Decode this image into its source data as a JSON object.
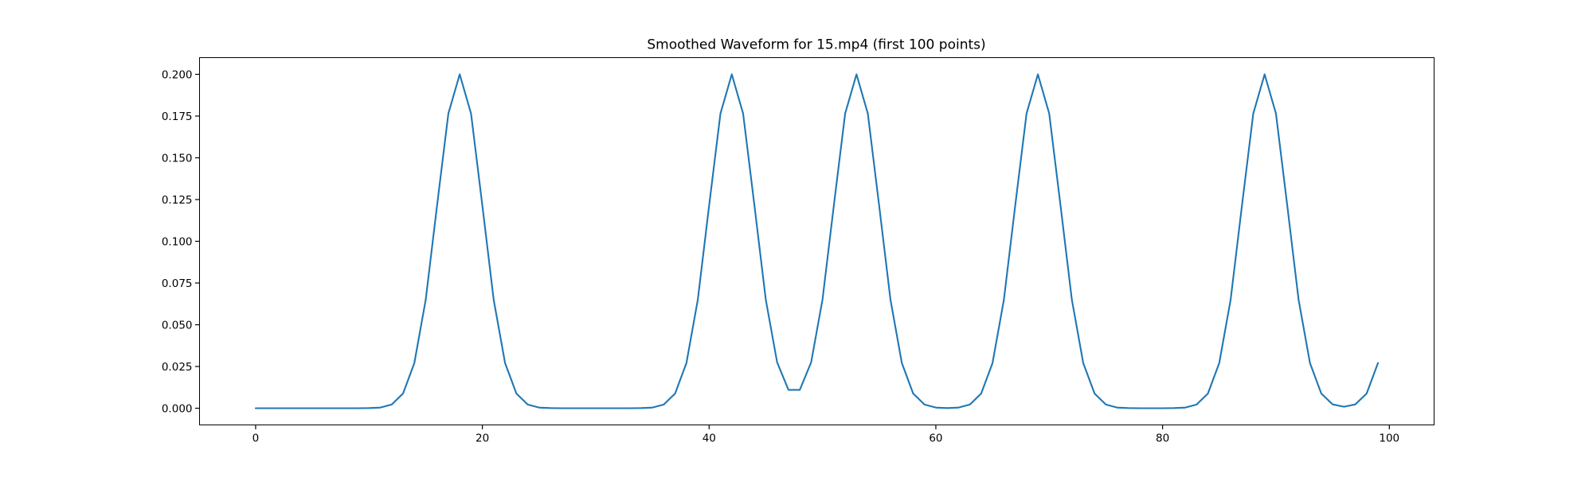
{
  "figure": {
    "background": "#ffffff"
  },
  "chart_data": {
    "type": "line",
    "title": "Smoothed Waveform for 15.mp4 (first 100 points)",
    "xlabel": "",
    "ylabel": "",
    "legend": "none",
    "grid": false,
    "line_color": "#1f77b4",
    "axis_color": "#000000",
    "xlim": [
      -4.95,
      103.95
    ],
    "ylim": [
      -0.01,
      0.21
    ],
    "x_ticks": {
      "values": [
        0,
        20,
        40,
        60,
        80,
        100
      ],
      "labels": [
        "0",
        "20",
        "40",
        "60",
        "80",
        "100"
      ]
    },
    "y_ticks": {
      "values": [
        0.0,
        0.025,
        0.05,
        0.075,
        0.1,
        0.125,
        0.15,
        0.175,
        0.2
      ],
      "labels": [
        "0.000",
        "0.025",
        "0.050",
        "0.075",
        "0.100",
        "0.125",
        "0.150",
        "0.175",
        "0.200"
      ]
    },
    "x": [
      0,
      1,
      2,
      3,
      4,
      5,
      6,
      7,
      8,
      9,
      10,
      11,
      12,
      13,
      14,
      15,
      16,
      17,
      18,
      19,
      20,
      21,
      22,
      23,
      24,
      25,
      26,
      27,
      28,
      29,
      30,
      31,
      32,
      33,
      34,
      35,
      36,
      37,
      38,
      39,
      40,
      41,
      42,
      43,
      44,
      45,
      46,
      47,
      48,
      49,
      50,
      51,
      52,
      53,
      54,
      55,
      56,
      57,
      58,
      59,
      60,
      61,
      62,
      63,
      64,
      65,
      66,
      67,
      68,
      69,
      70,
      71,
      72,
      73,
      74,
      75,
      76,
      77,
      78,
      79,
      80,
      81,
      82,
      83,
      84,
      85,
      86,
      87,
      88,
      89,
      90,
      91,
      92,
      93,
      94,
      95,
      96,
      97,
      98,
      99
    ],
    "values": [
      0,
      0,
      0,
      0,
      0,
      0,
      0,
      0,
      0,
      0,
      0.0001,
      0.0004,
      0.0022,
      0.0088,
      0.0271,
      0.0649,
      0.1213,
      0.1765,
      0.2,
      0.1765,
      0.1213,
      0.0649,
      0.0271,
      0.0088,
      0.0022,
      0.0004,
      0.0001,
      0,
      0,
      0,
      0,
      0,
      0,
      0,
      0.0001,
      0.0004,
      0.0022,
      0.0088,
      0.0271,
      0.0649,
      0.1213,
      0.1765,
      0.2,
      0.1765,
      0.1213,
      0.065,
      0.0275,
      0.011,
      0.011,
      0.0275,
      0.065,
      0.1213,
      0.1765,
      0.2,
      0.1765,
      0.1213,
      0.0649,
      0.0271,
      0.0088,
      0.0022,
      0.0004,
      0.0001,
      0.0004,
      0.0022,
      0.0088,
      0.0271,
      0.0649,
      0.1213,
      0.1765,
      0.2,
      0.1765,
      0.1213,
      0.0649,
      0.0271,
      0.0088,
      0.0022,
      0.0004,
      0.0001,
      0,
      0,
      0,
      0.0001,
      0.0004,
      0.0022,
      0.0088,
      0.0271,
      0.0649,
      0.1213,
      0.1765,
      0.2,
      0.1765,
      0.1213,
      0.0649,
      0.0271,
      0.0088,
      0.0023,
      0.0009,
      0.0023,
      0.0088,
      0.0271
    ]
  }
}
